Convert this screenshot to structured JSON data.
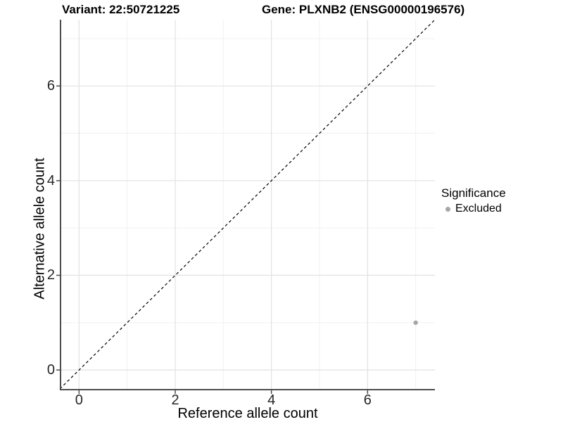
{
  "header": {
    "variant_title": "Variant: 22:50721225",
    "gene_title": "Gene: PLXNB2 (ENSG00000196576)"
  },
  "axes": {
    "x_label": "Reference allele count",
    "y_label": "Alternative allele count"
  },
  "legend": {
    "title": "Significance",
    "entries": [
      {
        "label": "Excluded",
        "marker": "circle-icon",
        "color": "#a6a6a6"
      }
    ]
  },
  "chart_data": {
    "type": "scatter",
    "title": "Variant: 22:50721225    Gene: PLXNB2 (ENSG00000196576)",
    "xlabel": "Reference allele count",
    "ylabel": "Alternative allele count",
    "xlim": [
      -0.4,
      7.4
    ],
    "ylim": [
      -0.4,
      7.4
    ],
    "x_ticks": [
      0,
      2,
      4,
      6
    ],
    "y_ticks": [
      0,
      2,
      4,
      6
    ],
    "x_minor_ticks": [
      1,
      3,
      5,
      7
    ],
    "y_minor_ticks": [
      1,
      3,
      5,
      7
    ],
    "grid": "major+minor",
    "legend_position": "right",
    "reference_line": {
      "type": "identity",
      "equation": "y = x",
      "style": "dashed",
      "color": "#000000"
    },
    "series": [
      {
        "name": "Excluded",
        "marker": "circle",
        "color": "#a6a6a6",
        "points": [
          {
            "x": 7,
            "y": 1
          }
        ]
      }
    ],
    "colors": {
      "grid_major": "#e4e4e4",
      "grid_minor": "#f1f1f1",
      "axis_line": "#4d4d4d",
      "tick_text": "#262626"
    }
  }
}
